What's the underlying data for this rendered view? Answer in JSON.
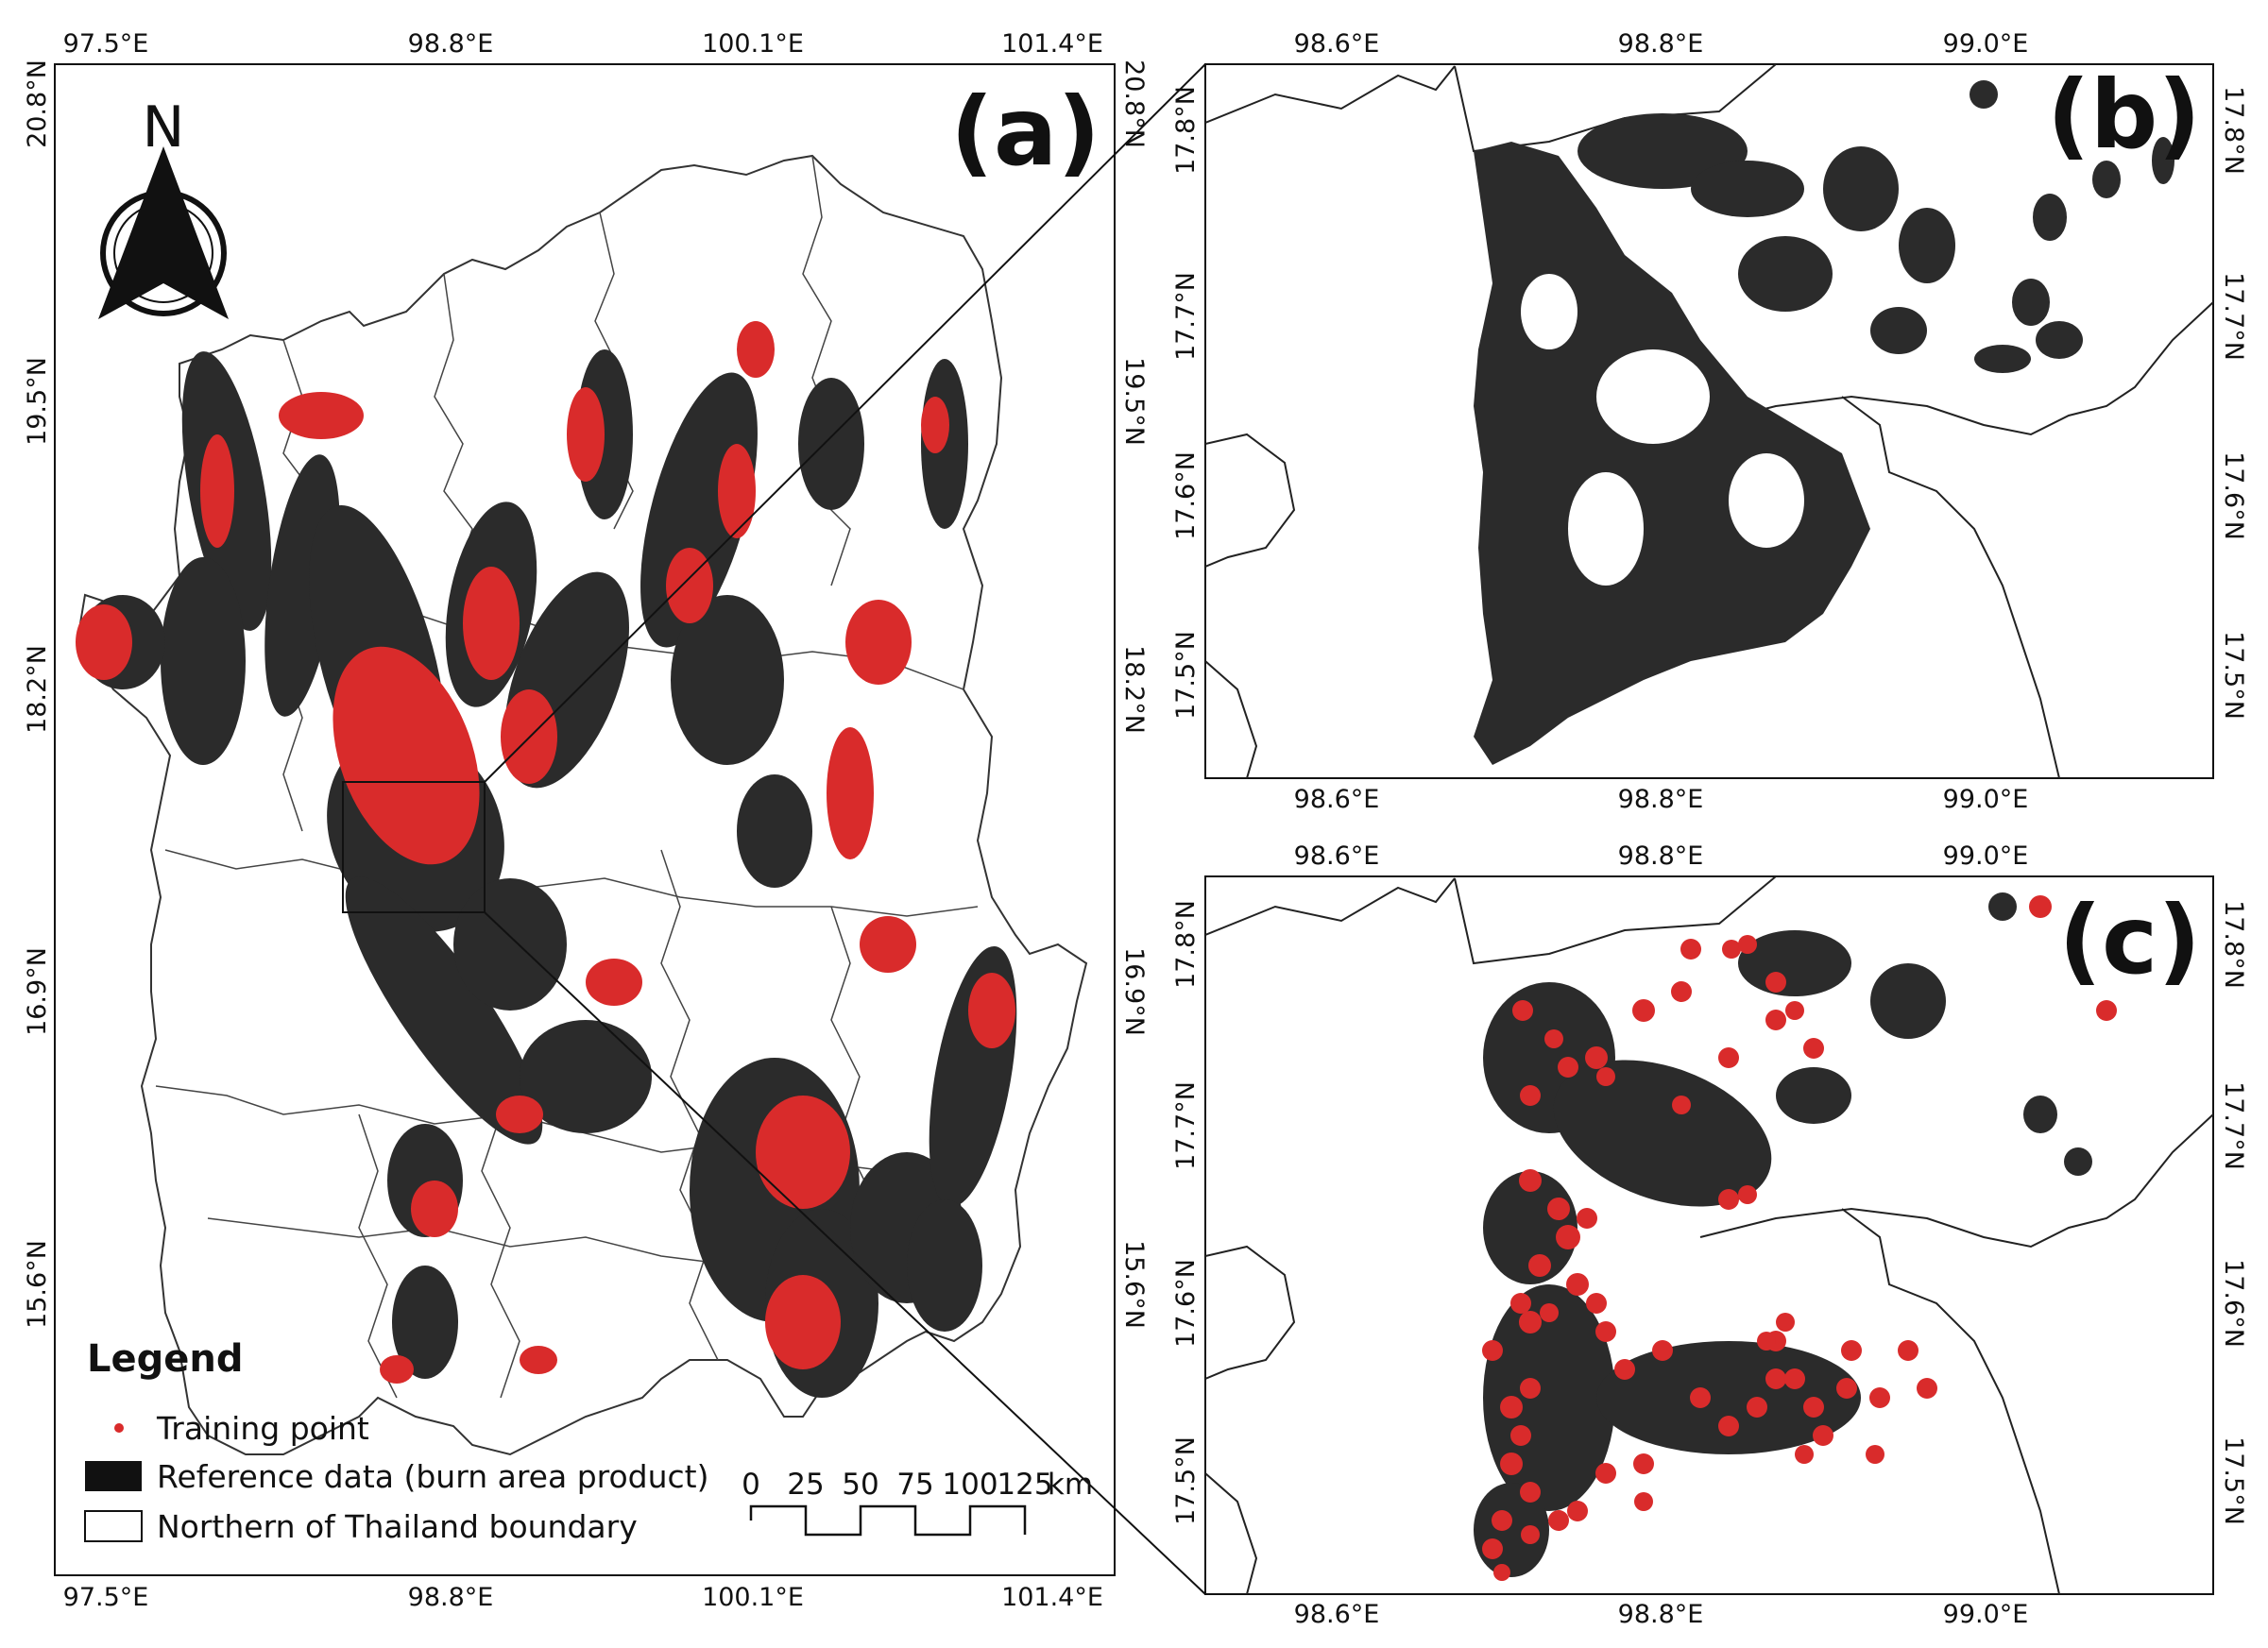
{
  "panels": {
    "a": {
      "label": "(a)",
      "x_ticks": [
        "97.5°E",
        "98.8°E",
        "100.1°E",
        "101.4°E"
      ],
      "y_ticks": [
        "20.8°N",
        "19.5°N",
        "18.2°N",
        "16.9°N",
        "15.6°N"
      ]
    },
    "b": {
      "label": "(b)",
      "x_ticks": [
        "98.6°E",
        "98.8°E",
        "99.0°E"
      ],
      "y_ticks": [
        "17.8°N",
        "17.7°N",
        "17.6°N",
        "17.5°N"
      ]
    },
    "c": {
      "label": "(c)",
      "x_ticks": [
        "98.6°E",
        "98.8°E",
        "99.0°E"
      ],
      "y_ticks": [
        "17.8°N",
        "17.7°N",
        "17.6°N",
        "17.5°N"
      ]
    }
  },
  "north_arrow": {
    "letter": "N",
    "icon": "north-arrow-icon"
  },
  "legend": {
    "title": "Legend",
    "items": [
      {
        "label": "Training point",
        "symbol": "red-dot",
        "color": "#d92b2b"
      },
      {
        "label": "Reference data (burn area product)",
        "symbol": "black-fill",
        "color": "#111111"
      },
      {
        "label": "Northern of Thailand boundary",
        "symbol": "outline",
        "color": "#ffffff"
      }
    ]
  },
  "scale_bar": {
    "labels": [
      "0",
      "25",
      "50",
      "75",
      "100",
      "125"
    ],
    "unit": "km"
  },
  "colors": {
    "burn": "#2b2b2b",
    "training": "#d92b2b",
    "boundary": "#333333"
  }
}
